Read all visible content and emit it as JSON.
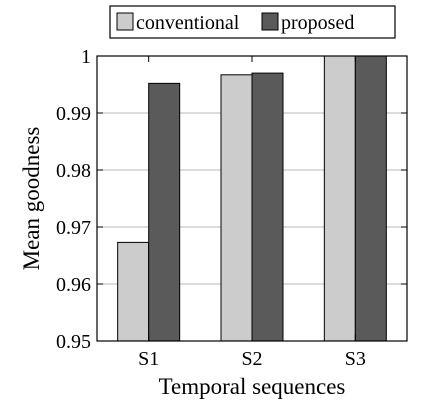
{
  "chart_data": {
    "type": "bar",
    "categories": [
      "S1",
      "S2",
      "S3"
    ],
    "series": [
      {
        "name": "conventional",
        "values": [
          0.9673,
          0.9967,
          1.0
        ],
        "color": "#cccccc"
      },
      {
        "name": "proposed",
        "values": [
          0.9952,
          0.997,
          1.0
        ],
        "color": "#5a5a5a"
      }
    ],
    "xlabel": "Temporal sequences",
    "ylabel": "Mean goodness",
    "ylim": [
      0.95,
      1.0
    ],
    "yticks": [
      0.95,
      0.96,
      0.97,
      0.98,
      0.99,
      1
    ],
    "ytick_labels": [
      "0.95",
      "0.96",
      "0.97",
      "0.98",
      "0.99",
      "1"
    ],
    "grid": "horizontal",
    "legend_position": "top"
  }
}
